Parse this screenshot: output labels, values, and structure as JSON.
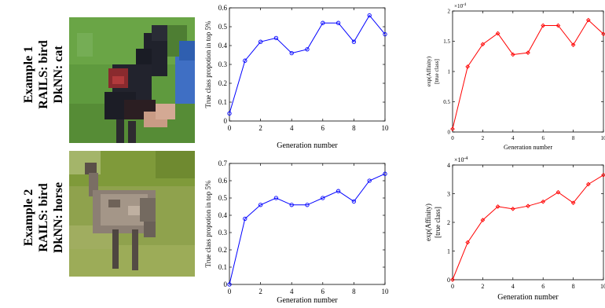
{
  "examples": [
    {
      "line1": "Example 1",
      "line2": "RAILS: bird",
      "line3": "DkNN: cat"
    },
    {
      "line1": "Example 2",
      "line2": "RAILS: bird",
      "line3": "DkNN: horse"
    }
  ],
  "chart_data": [
    {
      "type": "line",
      "xlabel": "Generation number",
      "ylabel": "True class propotion in top 5%",
      "x": [
        0,
        1,
        2,
        3,
        4,
        5,
        6,
        7,
        8,
        9,
        10
      ],
      "xticks": [
        0,
        2,
        4,
        6,
        8,
        10
      ],
      "yticks": [
        0,
        0.1,
        0.2,
        0.3,
        0.4,
        0.5,
        0.6
      ],
      "ytick_labels": [
        "0",
        "0.1",
        "0.2",
        "0.3",
        "0.4",
        "0.5",
        "0.6"
      ],
      "ylim": [
        0,
        0.6
      ],
      "xlim": [
        0,
        10
      ],
      "color": "#0000ff",
      "series": [
        {
          "values": [
            0.04,
            0.32,
            0.42,
            0.44,
            0.36,
            0.38,
            0.52,
            0.52,
            0.42,
            0.56,
            0.46
          ]
        }
      ]
    },
    {
      "type": "line",
      "xlabel": "Generation number",
      "ylabel": "exp(Affinity) [true class]",
      "ylabel_lines": [
        "exp(Affinity)",
        "[true class]"
      ],
      "scale_label": "×10",
      "scale_exp": "-4",
      "x": [
        0,
        1,
        2,
        3,
        4,
        5,
        6,
        7,
        8,
        9,
        10
      ],
      "xticks": [
        0,
        2,
        4,
        6,
        8,
        10
      ],
      "yticks": [
        0,
        0.5,
        1,
        1.5,
        2
      ],
      "ytick_labels": [
        "0",
        "0.5",
        "1",
        "1.5",
        "2"
      ],
      "ylim": [
        0,
        2
      ],
      "xlim": [
        0,
        10
      ],
      "color": "#ff0000",
      "series": [
        {
          "values": [
            0.05,
            1.08,
            1.45,
            1.63,
            1.28,
            1.31,
            1.76,
            1.76,
            1.44,
            1.85,
            1.62
          ]
        }
      ]
    },
    {
      "type": "line",
      "xlabel": "Generation number",
      "ylabel": "True class propotion in top 5%",
      "x": [
        0,
        1,
        2,
        3,
        4,
        5,
        6,
        7,
        8,
        9,
        10
      ],
      "xticks": [
        0,
        2,
        4,
        6,
        8,
        10
      ],
      "yticks": [
        0,
        0.1,
        0.2,
        0.3,
        0.4,
        0.5,
        0.6,
        0.7
      ],
      "ytick_labels": [
        "0",
        "0.1",
        "0.2",
        "0.3",
        "0.4",
        "0.5",
        "0.6",
        "0.7"
      ],
      "ylim": [
        0,
        0.7
      ],
      "xlim": [
        0,
        10
      ],
      "color": "#0000ff",
      "series": [
        {
          "values": [
            0.0,
            0.38,
            0.46,
            0.5,
            0.46,
            0.46,
            0.5,
            0.54,
            0.48,
            0.6,
            0.64
          ]
        }
      ]
    },
    {
      "type": "line",
      "xlabel": "Generation number",
      "ylabel": "exp(Affinity) [true class]",
      "ylabel_lines": [
        "exp(Affinity)",
        "[true class]"
      ],
      "scale_label": "×10",
      "scale_exp": "-4",
      "x": [
        0,
        1,
        2,
        3,
        4,
        5,
        6,
        7,
        8,
        9,
        10
      ],
      "xticks": [
        0,
        2,
        4,
        6,
        8,
        10
      ],
      "yticks": [
        0,
        1,
        2,
        3,
        4
      ],
      "ytick_labels": [
        "0",
        "1",
        "2",
        "3",
        "4"
      ],
      "ylim": [
        0,
        4
      ],
      "xlim": [
        0,
        10
      ],
      "color": "#ff0000",
      "series": [
        {
          "values": [
            0.0,
            1.3,
            2.08,
            2.55,
            2.47,
            2.57,
            2.72,
            3.05,
            2.68,
            3.33,
            3.65
          ]
        }
      ]
    }
  ],
  "images": [
    {
      "subject": "pixelated-dark-bird-on-grass"
    },
    {
      "subject": "pixelated-emu-bird-on-grass"
    }
  ]
}
